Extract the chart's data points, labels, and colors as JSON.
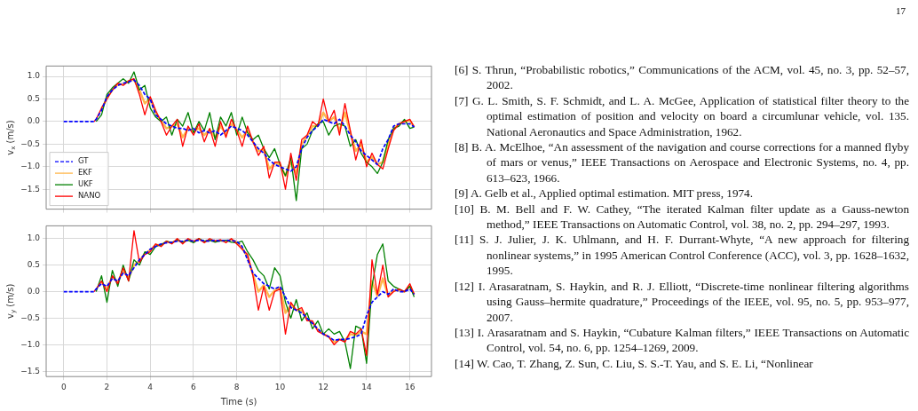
{
  "chart_data": [
    {
      "type": "line",
      "ylabel": "v$_{x}$ (m/s)",
      "legend": "bottom left",
      "grid": true,
      "tick_labels": "y",
      "x": [
        0,
        0.5,
        1.0,
        1.4,
        1.5,
        1.75,
        2.0,
        2.25,
        2.5,
        2.75,
        3.0,
        3.25,
        3.5,
        3.75,
        4.0,
        4.25,
        4.5,
        4.75,
        5.0,
        5.25,
        5.5,
        5.75,
        6.0,
        6.25,
        6.5,
        6.75,
        7.0,
        7.25,
        7.5,
        7.75,
        8.0,
        8.25,
        8.5,
        8.75,
        9.0,
        9.25,
        9.5,
        9.75,
        10.0,
        10.25,
        10.5,
        10.75,
        11.0,
        11.25,
        11.5,
        11.75,
        12.0,
        12.25,
        12.5,
        12.75,
        13.0,
        13.25,
        13.5,
        13.75,
        14.0,
        14.25,
        14.5,
        14.75,
        15.0,
        15.25,
        15.5,
        15.75,
        16.0,
        16.2
      ],
      "xlim": [
        -0.81,
        17.0
      ],
      "xticks": [
        0,
        2,
        4,
        6,
        8,
        10,
        12,
        14,
        16
      ],
      "ylim": [
        -1.94,
        1.23
      ],
      "yticks": [
        {
          "value": -1.5,
          "label": "−1.5"
        },
        {
          "value": -1,
          "label": "−1.0"
        },
        {
          "value": -0.5,
          "label": "−0.5"
        },
        {
          "value": 0,
          "label": "0.0"
        },
        {
          "value": 0.5,
          "label": "0.5"
        },
        {
          "value": 1,
          "label": "1.0"
        }
      ],
      "series": [
        {
          "name": "GT",
          "color": "#0000ff",
          "line_style": "dashed",
          "values": [
            0,
            0,
            0,
            0,
            0.05,
            0.25,
            0.55,
            0.7,
            0.8,
            0.85,
            0.88,
            0.92,
            0.8,
            0.6,
            0.5,
            0.15,
            0.05,
            -0.05,
            -0.1,
            -0.15,
            -0.15,
            -0.2,
            -0.15,
            -0.25,
            -0.2,
            -0.25,
            -0.2,
            -0.3,
            -0.2,
            -0.1,
            -0.15,
            -0.2,
            -0.3,
            -0.45,
            -0.6,
            -0.7,
            -0.85,
            -0.95,
            -1.0,
            -1.05,
            -1.1,
            -1.0,
            -0.6,
            -0.35,
            -0.2,
            -0.1,
            0.05,
            0.0,
            -0.05,
            0.05,
            -0.1,
            -0.3,
            -0.45,
            -0.65,
            -0.75,
            -0.85,
            -0.95,
            -0.6,
            -0.4,
            -0.1,
            -0.05,
            -0.05,
            -0.05,
            -0.12
          ]
        },
        {
          "name": "EKF",
          "color": "#ffb74d",
          "values": [
            null,
            null,
            null,
            null,
            null,
            0.28,
            0.52,
            0.7,
            0.82,
            0.83,
            0.9,
            0.93,
            0.7,
            0.4,
            0.52,
            0.2,
            0.02,
            -0.15,
            -0.1,
            -0.05,
            -0.35,
            -0.15,
            -0.22,
            -0.15,
            -0.3,
            -0.18,
            -0.35,
            -0.1,
            -0.28,
            -0.05,
            -0.18,
            -0.35,
            -0.2,
            -0.45,
            -0.65,
            -0.62,
            -1.05,
            -0.92,
            -0.95,
            -1.2,
            -0.9,
            -1.15,
            -0.5,
            -0.32,
            -0.1,
            -0.1,
            0.2,
            0.0,
            0.1,
            -0.2,
            0.2,
            -0.25,
            -0.65,
            -0.5,
            -0.9,
            -0.78,
            -0.95,
            -0.9,
            -0.5,
            -0.15,
            -0.05,
            0.0,
            0.02,
            -0.12
          ]
        },
        {
          "name": "UKF",
          "color": "#008000",
          "values": [
            null,
            null,
            null,
            null,
            0.0,
            0.15,
            0.6,
            0.75,
            0.85,
            0.95,
            0.85,
            1.1,
            0.7,
            0.8,
            0.3,
            0.1,
            0.0,
            0.1,
            -0.3,
            0.05,
            -0.1,
            0.2,
            -0.25,
            0.0,
            -0.2,
            0.2,
            -0.4,
            0.1,
            -0.1,
            0.2,
            -0.3,
            0.1,
            -0.25,
            -0.4,
            -0.3,
            -0.6,
            -0.8,
            -0.6,
            -0.95,
            -1.2,
            -0.8,
            -1.75,
            -0.6,
            -0.5,
            -0.2,
            -0.05,
            0.0,
            -0.3,
            -0.1,
            -0.05,
            -0.1,
            -0.55,
            -0.4,
            -0.7,
            -0.9,
            -1.0,
            -1.15,
            -0.9,
            -0.4,
            -0.15,
            -0.1,
            0.05,
            -0.15,
            -0.12
          ]
        },
        {
          "name": "NANO",
          "color": "#ff0000",
          "values": [
            null,
            null,
            null,
            0,
            0.05,
            0.3,
            0.5,
            0.7,
            0.85,
            0.8,
            0.9,
            0.95,
            0.6,
            0.15,
            0.55,
            0.25,
            0.0,
            -0.3,
            -0.1,
            0.05,
            -0.55,
            -0.1,
            -0.3,
            -0.05,
            -0.45,
            -0.15,
            -0.55,
            0.0,
            -0.35,
            0.05,
            -0.2,
            -0.55,
            -0.1,
            -0.45,
            -0.75,
            -0.55,
            -1.25,
            -0.9,
            -0.9,
            -1.5,
            -0.7,
            -1.3,
            -0.4,
            -0.3,
            0.0,
            -0.1,
            0.5,
            0.0,
            0.25,
            -0.3,
            0.4,
            -0.2,
            -0.85,
            -0.4,
            -1.0,
            -0.7,
            -0.95,
            -1.05,
            -0.6,
            -0.2,
            -0.05,
            0.0,
            0.05,
            -0.12
          ]
        }
      ]
    },
    {
      "type": "line",
      "xlabel": "Time (s)",
      "ylabel": "v$_{y}$ (m/s)",
      "grid": true,
      "x": [
        0,
        0.5,
        1.0,
        1.4,
        1.5,
        1.75,
        2.0,
        2.25,
        2.5,
        2.75,
        3.0,
        3.25,
        3.5,
        3.75,
        4.0,
        4.25,
        4.5,
        4.75,
        5.0,
        5.25,
        5.5,
        5.75,
        6.0,
        6.25,
        6.5,
        6.75,
        7.0,
        7.25,
        7.5,
        7.75,
        8.0,
        8.25,
        8.5,
        8.75,
        9.0,
        9.25,
        9.5,
        9.75,
        10.0,
        10.25,
        10.5,
        10.75,
        11.0,
        11.25,
        11.5,
        11.75,
        12.0,
        12.25,
        12.5,
        12.75,
        13.0,
        13.25,
        13.5,
        13.75,
        14.0,
        14.25,
        14.5,
        14.75,
        15.0,
        15.25,
        15.5,
        15.75,
        16.0,
        16.2
      ],
      "xlim": [
        -0.81,
        17.0
      ],
      "xticks": [
        0,
        2,
        4,
        6,
        8,
        10,
        12,
        14,
        16
      ],
      "ylim": [
        -1.6,
        1.24
      ],
      "yticks": [
        {
          "value": -1.5,
          "label": "−1.5"
        },
        {
          "value": -1,
          "label": "−1.0"
        },
        {
          "value": -0.5,
          "label": "−0.5"
        },
        {
          "value": 0,
          "label": "0.0"
        },
        {
          "value": 0.5,
          "label": "0.5"
        },
        {
          "value": 1,
          "label": "1.0"
        }
      ],
      "series": [
        {
          "color": "#0000ff",
          "line_style": "dashed",
          "values": [
            0,
            0,
            0,
            0,
            0.05,
            0.15,
            0.1,
            0.25,
            0.2,
            0.35,
            0.3,
            0.45,
            0.6,
            0.7,
            0.8,
            0.85,
            0.9,
            0.92,
            0.93,
            0.95,
            0.95,
            0.97,
            0.95,
            0.97,
            0.96,
            0.95,
            0.97,
            0.95,
            0.97,
            0.96,
            0.95,
            0.85,
            0.6,
            0.35,
            0.25,
            0.15,
            0.1,
            0.05,
            0.1,
            -0.1,
            -0.3,
            -0.35,
            -0.4,
            -0.5,
            -0.6,
            -0.7,
            -0.8,
            -0.85,
            -0.92,
            -0.9,
            -0.9,
            -0.88,
            -0.85,
            -0.8,
            -0.45,
            -0.2,
            -0.1,
            0.0,
            -0.05,
            0.05,
            0.0,
            0.0,
            0.05,
            -0.05
          ]
        },
        {
          "color": "#ffb74d",
          "values": [
            null,
            null,
            null,
            null,
            null,
            0.18,
            0.05,
            0.28,
            0.18,
            0.4,
            0.25,
            0.5,
            0.58,
            0.72,
            0.78,
            0.88,
            0.88,
            0.94,
            0.92,
            0.97,
            0.93,
            0.98,
            0.94,
            0.99,
            0.94,
            0.97,
            0.96,
            0.96,
            0.95,
            0.98,
            0.93,
            0.82,
            0.65,
            0.32,
            0.0,
            0.12,
            -0.1,
            0.02,
            0.08,
            -0.4,
            -0.25,
            -0.35,
            -0.35,
            -0.52,
            -0.58,
            -0.72,
            -0.8,
            -0.85,
            -0.95,
            -0.9,
            -0.92,
            -0.8,
            -0.82,
            -0.75,
            -0.8,
            0.2,
            -0.08,
            0.25,
            -0.08,
            0.02,
            0.03,
            0.0,
            0.1,
            -0.05
          ]
        },
        {
          "color": "#008000",
          "values": [
            null,
            null,
            null,
            null,
            0.0,
            0.3,
            -0.2,
            0.4,
            0.1,
            0.5,
            0.2,
            0.6,
            0.5,
            0.75,
            0.7,
            0.85,
            0.88,
            0.95,
            0.92,
            0.98,
            0.93,
            0.97,
            0.92,
            1.0,
            0.95,
            0.97,
            0.93,
            0.96,
            0.97,
            0.93,
            0.92,
            0.95,
            0.75,
            0.6,
            0.4,
            0.3,
            0.05,
            0.45,
            0.3,
            -0.2,
            -0.5,
            -0.15,
            -0.55,
            -0.4,
            -0.7,
            -0.55,
            -0.8,
            -0.7,
            -0.8,
            -0.75,
            -0.95,
            -1.45,
            -0.65,
            -0.7,
            -1.35,
            0.1,
            0.7,
            0.9,
            0.2,
            0.1,
            0.05,
            0.0,
            0.1,
            -0.1
          ]
        },
        {
          "color": "#ff0000",
          "values": [
            null,
            null,
            null,
            0,
            0.05,
            0.2,
            0.0,
            0.3,
            0.15,
            0.45,
            0.2,
            1.15,
            0.55,
            0.7,
            0.75,
            0.9,
            0.85,
            0.95,
            0.9,
            1.0,
            0.9,
            1.0,
            0.95,
            1.0,
            0.92,
            1.0,
            0.95,
            0.98,
            0.92,
            1.0,
            0.9,
            0.8,
            0.7,
            0.3,
            -0.35,
            0.1,
            -0.35,
            0.0,
            0.05,
            -0.8,
            -0.2,
            -0.35,
            -0.3,
            -0.55,
            -0.55,
            -0.75,
            -0.8,
            -0.85,
            -1.0,
            -0.9,
            -0.95,
            -0.75,
            -0.8,
            -0.7,
            -1.2,
            0.6,
            -0.05,
            0.5,
            -0.1,
            0.0,
            0.05,
            0.0,
            0.15,
            -0.05
          ]
        }
      ]
    },
    {
      "type": "other",
      "annotations": [
        "17",
        "[6] S. Thrun, “Probabilistic robotics,” Communications of the ACM, vol. 45, no. 3, pp. 52–57, 2002.",
        "[7] G. L. Smith, S. F. Schmidt, and L. A. McGee, Application of statistical filter theory to the optimal estimation of position and velocity on board a circumlunar vehicle, vol. 135.  National Aeronautics and Space Administration, 1962.",
        "[8] B. A. McElhoe, “An assessment of the navigation and course corrections for a manned flyby of mars or venus,” IEEE Transactions on Aerospace and Electronic Systems, no. 4, pp. 613–623, 1966.",
        "[9] A. Gelb et al., Applied optimal estimation. MIT press, 1974.",
        "[10] B. M. Bell and F. W. Cathey, “The iterated Kalman filter update as a Gauss-newton method,” IEEE Transactions on Automatic Control, vol. 38, no. 2, pp. 294–297, 1993.",
        "[11] S. J. Julier, J. K. Uhlmann, and H. F. Durrant-Whyte, “A new approach for filtering nonlinear systems,” in 1995 American Control Conference (ACC), vol. 3, pp. 1628–1632, 1995.",
        "[12] I. Arasaratnam, S. Haykin, and R. J. Elliott, “Discrete-time nonlinear filtering algorithms using Gauss–hermite quadrature,” Proceedings of the IEEE, vol. 95, no. 5, pp. 953–977, 2007.",
        "[13] I. Arasaratnam and S. Haykin, “Cubature Kalman filters,” IEEE Transactions on Automatic Control, vol. 54, no. 6, pp. 1254–1269, 2009.",
        "[14] W. Cao, T. Zhang, Z. Sun, C. Liu, S. S.-T. Yau, and S. E. Li, “Nonlinear"
      ]
    }
  ]
}
